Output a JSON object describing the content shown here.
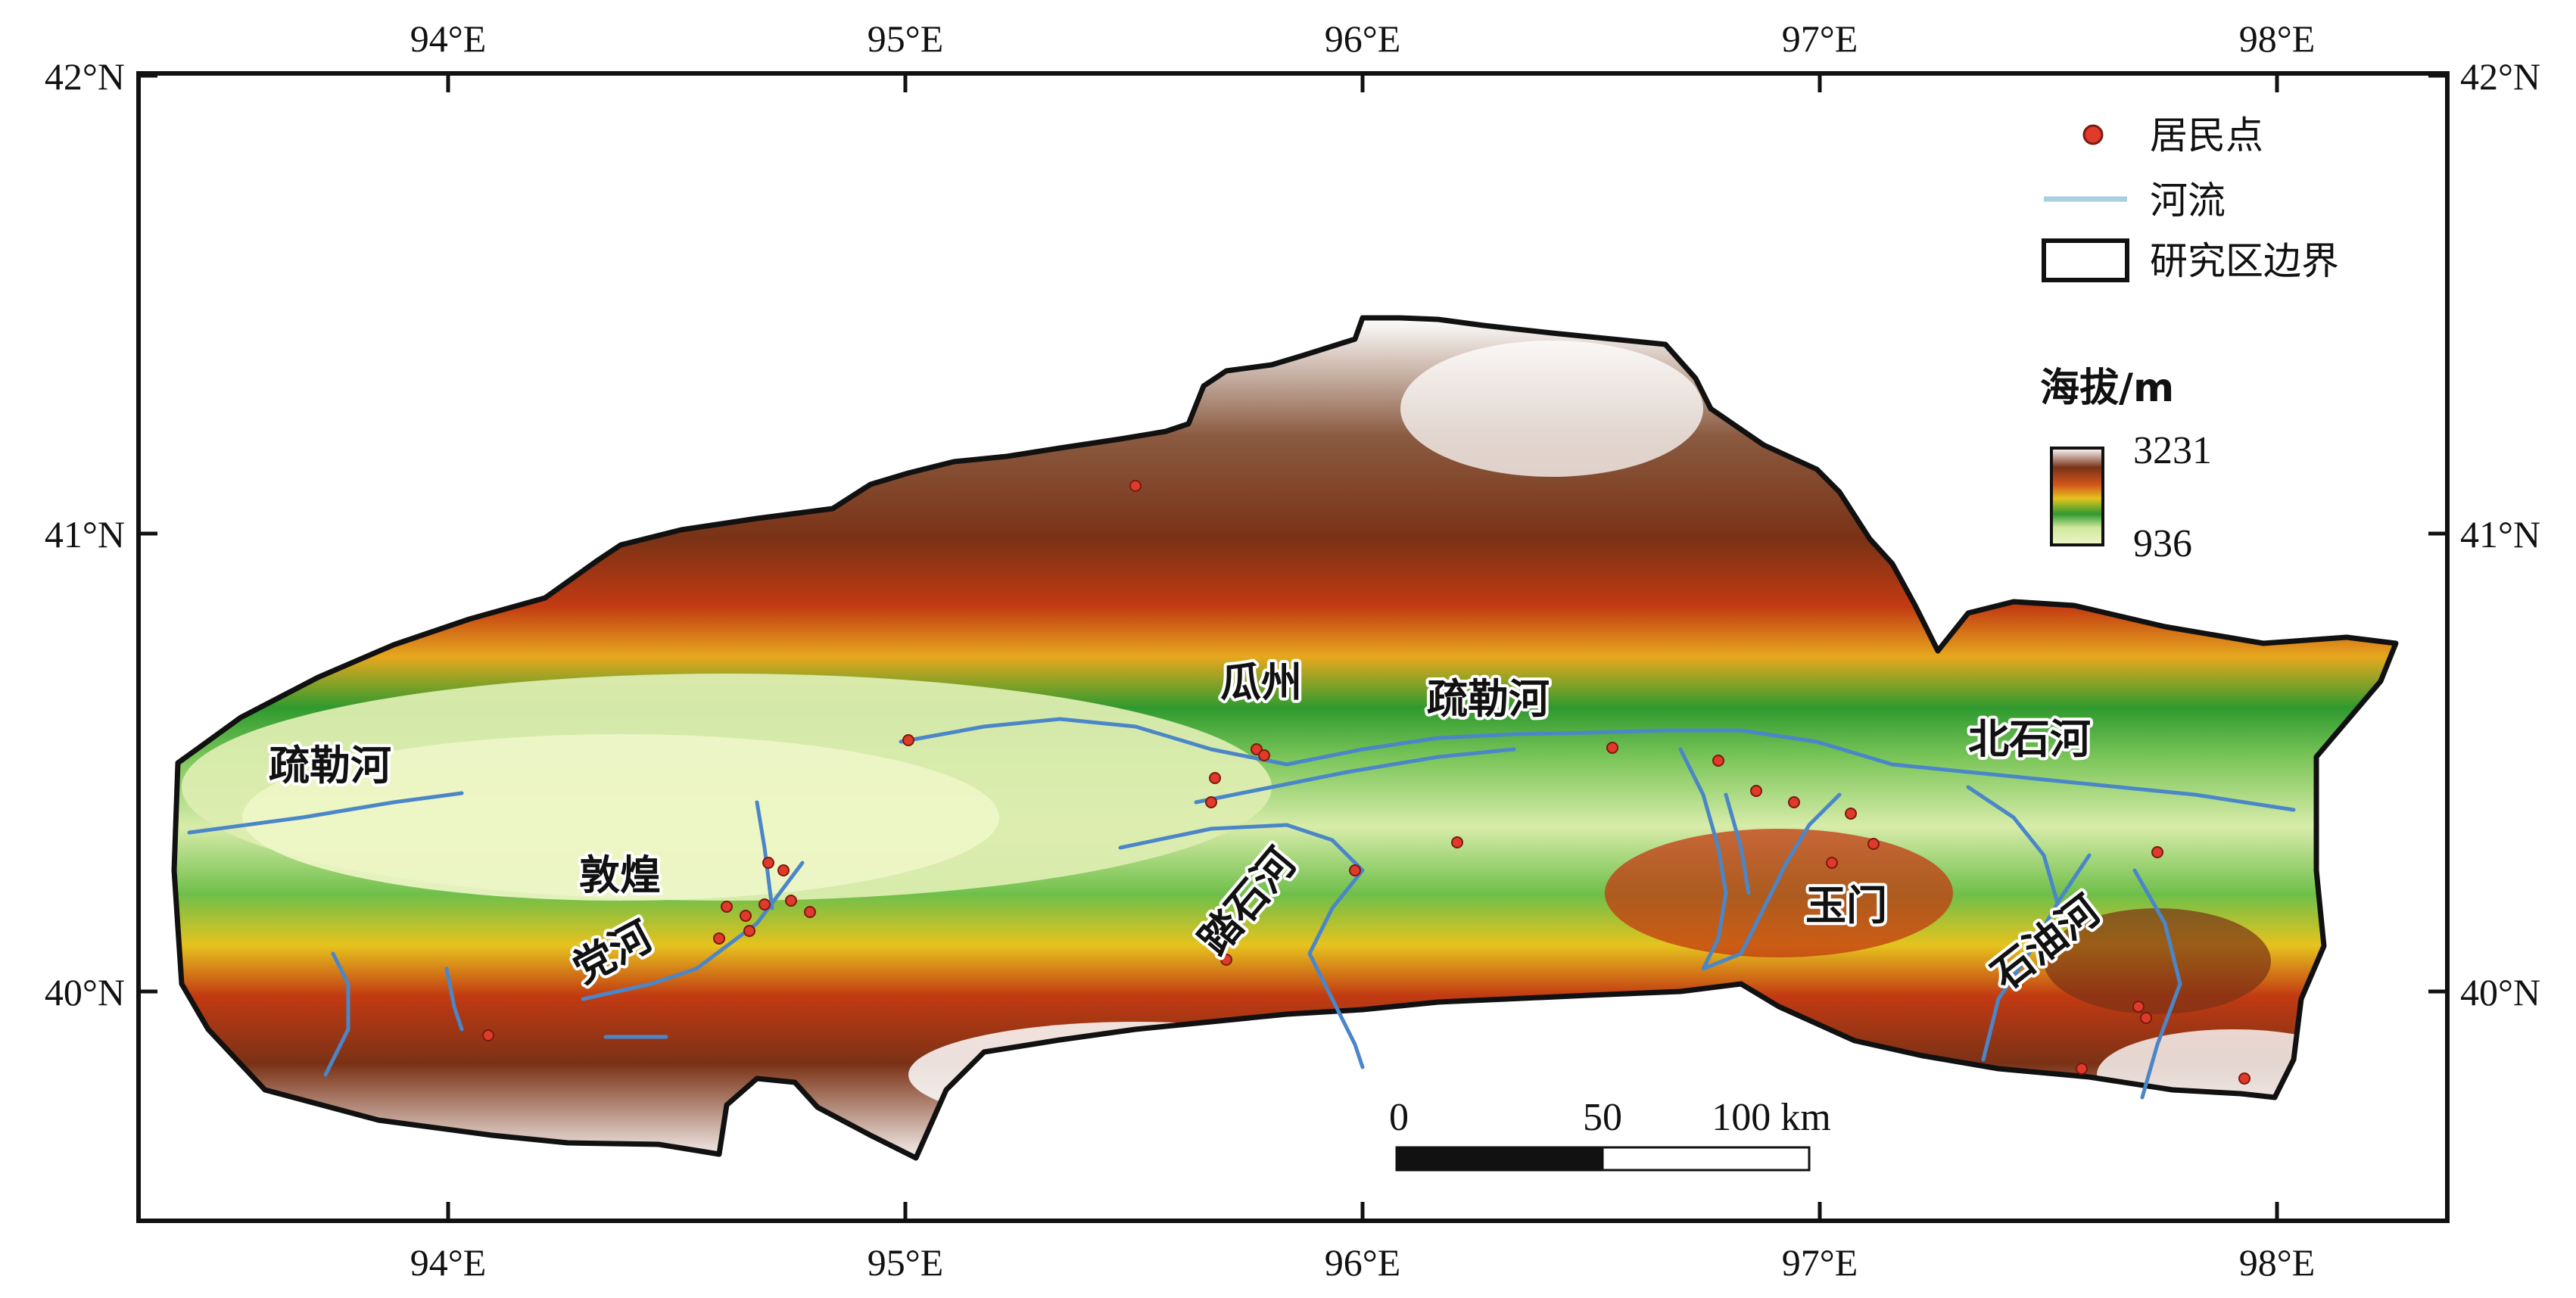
{
  "lon_ticks": [
    {
      "value": 94,
      "label": "94°E"
    },
    {
      "value": 95,
      "label": "95°E"
    },
    {
      "value": 96,
      "label": "96°E"
    },
    {
      "value": 97,
      "label": "97°E"
    },
    {
      "value": 98,
      "label": "98°E"
    }
  ],
  "lat_ticks": [
    {
      "value": 42,
      "label": "42°N"
    },
    {
      "value": 41,
      "label": "41°N"
    },
    {
      "value": 40,
      "label": "40°N"
    }
  ],
  "legend": {
    "settlement_label": "居民点",
    "river_label": "河流",
    "boundary_label": "研究区边界",
    "elevation_title": "海拔/m",
    "elevation_max": "3231",
    "elevation_min": "936"
  },
  "place_labels": {
    "shule_west": "疏勒河",
    "guazhou": "瓜州",
    "shule_central": "疏勒河",
    "beishi": "北石河",
    "dunhuang": "敦煌",
    "danghe": "党河",
    "tashi": "踏石河",
    "yumen": "玉门",
    "shiyou": "石油河"
  },
  "scale_bar": {
    "label_0": "0",
    "label_50": "50",
    "label_100": "100 km"
  },
  "colors": {
    "settlement": "#e03a2a",
    "river": "#4a86c8",
    "legend_river": "#a9cfe0",
    "boundary": "#111111",
    "elev_low": "#e6f2b8",
    "elev_green": "#2f9a2f",
    "elev_yellow": "#e6c31e",
    "elev_orange": "#d2561a",
    "elev_brown": "#7a3216",
    "elev_high": "#ffffff"
  }
}
